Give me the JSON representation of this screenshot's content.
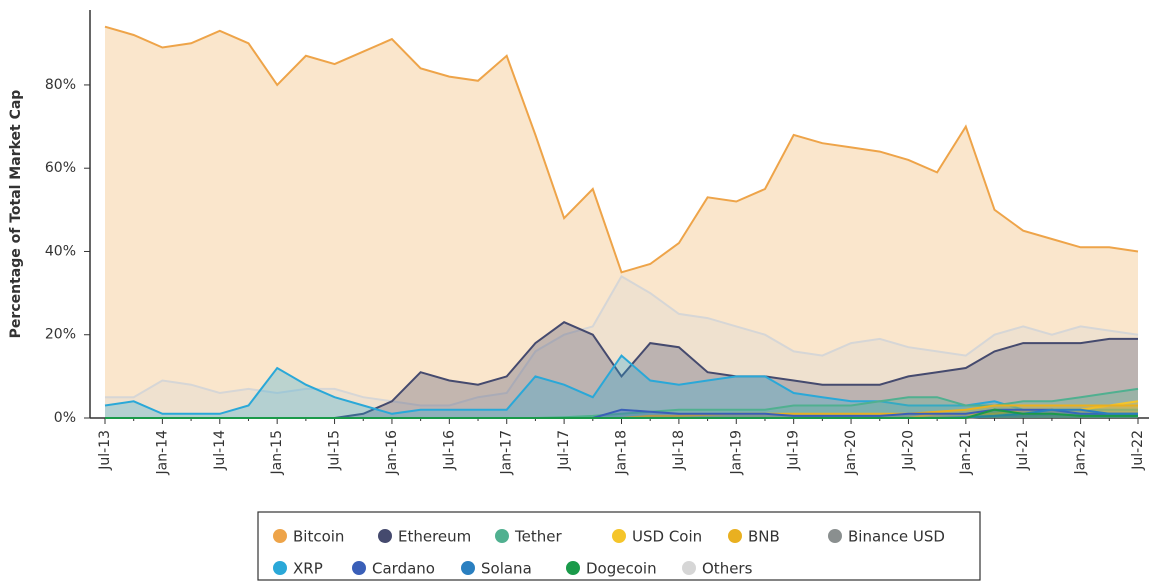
{
  "chart_data": {
    "type": "area",
    "y_label": "Percentage of Total Market Cap",
    "categories": [
      "Jul-13",
      null,
      "Jan-14",
      null,
      "Jul-14",
      null,
      "Jan-15",
      null,
      "Jul-15",
      null,
      "Jan-16",
      null,
      "Jul-16",
      null,
      "Jan-17",
      null,
      "Jul-17",
      null,
      "Jan-18",
      null,
      "Jul-18",
      null,
      "Jan-19",
      null,
      "Jul-19",
      null,
      "Jan-20",
      null,
      "Jul-20",
      null,
      "Jan-21",
      null,
      "Jul-21",
      null,
      "Jan-22",
      null,
      "Jul-22"
    ],
    "ylim": [
      0,
      98
    ],
    "yticks": [
      {
        "value": 0,
        "label": "0%"
      },
      {
        "value": 20,
        "label": "20%"
      },
      {
        "value": 40,
        "label": "40%"
      },
      {
        "value": 60,
        "label": "60%"
      },
      {
        "value": 80,
        "label": "80%"
      }
    ],
    "series": [
      {
        "name": "Bitcoin",
        "color": "#eea449",
        "values": [
          94,
          92,
          89,
          90,
          93,
          90,
          80,
          87,
          85,
          88,
          91,
          84,
          82,
          81,
          87,
          68,
          48,
          55,
          35,
          37,
          42,
          53,
          52,
          55,
          68,
          66,
          65,
          64,
          62,
          59,
          70,
          50,
          45,
          43,
          41,
          41,
          40
        ]
      },
      {
        "name": "Ethereum",
        "color": "#454a6e",
        "values": [
          0,
          0,
          0,
          0,
          0,
          0,
          0,
          0,
          0,
          1,
          4,
          11,
          9,
          8,
          10,
          18,
          23,
          20,
          10,
          18,
          17,
          11,
          10,
          10,
          9,
          8,
          8,
          8,
          10,
          11,
          12,
          16,
          18,
          18,
          18,
          19,
          19
        ]
      },
      {
        "name": "Tether",
        "color": "#50b090",
        "values": [
          0,
          0,
          0,
          0,
          0,
          0,
          0,
          0,
          0,
          0,
          0,
          0,
          0,
          0,
          0,
          0,
          0.2,
          0.5,
          1,
          1.5,
          2,
          2,
          2,
          2,
          3,
          3,
          3,
          4,
          5,
          5,
          3,
          3,
          4,
          4,
          5,
          6,
          7
        ]
      },
      {
        "name": "USD Coin",
        "color": "#f5c52a",
        "values": [
          0,
          0,
          0,
          0,
          0,
          0,
          0,
          0,
          0,
          0,
          0,
          0,
          0,
          0,
          0,
          0,
          0,
          0,
          0,
          0,
          0,
          0,
          0,
          0,
          0,
          0,
          0,
          0,
          0,
          1,
          1,
          1,
          2,
          2,
          2,
          3,
          4
        ]
      },
      {
        "name": "BNB",
        "color": "#e9b020",
        "values": [
          0,
          0,
          0,
          0,
          0,
          0,
          0,
          0,
          0,
          0,
          0,
          0,
          0,
          0,
          0,
          0,
          0,
          0,
          0,
          0.5,
          0.5,
          0.8,
          1,
          1,
          1,
          1,
          1,
          1,
          1,
          1.5,
          2,
          3,
          3,
          3,
          3,
          3,
          3
        ]
      },
      {
        "name": "Binance USD",
        "color": "#8a8f8f",
        "values": [
          0,
          0,
          0,
          0,
          0,
          0,
          0,
          0,
          0,
          0,
          0,
          0,
          0,
          0,
          0,
          0,
          0,
          0,
          0,
          0,
          0,
          0,
          0,
          0,
          0,
          0,
          0,
          0,
          0,
          0,
          0,
          0.5,
          0.5,
          0.8,
          0.8,
          1,
          1
        ]
      },
      {
        "name": "XRP",
        "color": "#2aa8d8",
        "values": [
          3,
          4,
          1,
          1,
          1,
          3,
          12,
          8,
          5,
          3,
          1,
          2,
          2,
          2,
          2,
          10,
          8,
          5,
          15,
          9,
          8,
          9,
          10,
          10,
          6,
          5,
          4,
          4,
          3,
          3,
          3,
          4,
          2,
          2,
          2,
          2,
          2
        ]
      },
      {
        "name": "Cardano",
        "color": "#3a5fb8",
        "values": [
          0,
          0,
          0,
          0,
          0,
          0,
          0,
          0,
          0,
          0,
          0,
          0,
          0,
          0,
          0,
          0,
          0,
          0,
          2,
          1.5,
          1,
          1,
          1,
          1,
          0.5,
          0.5,
          0.5,
          0.5,
          1,
          1,
          1,
          2,
          2,
          2,
          1,
          1,
          1
        ]
      },
      {
        "name": "Solana",
        "color": "#2a7fc0",
        "values": [
          0,
          0,
          0,
          0,
          0,
          0,
          0,
          0,
          0,
          0,
          0,
          0,
          0,
          0,
          0,
          0,
          0,
          0,
          0,
          0,
          0,
          0,
          0,
          0,
          0,
          0,
          0,
          0,
          0,
          0,
          0.2,
          0.5,
          1,
          2,
          2,
          1,
          1
        ]
      },
      {
        "name": "Dogecoin",
        "color": "#1a9a4a",
        "values": [
          0,
          0,
          0,
          0,
          0,
          0,
          0,
          0,
          0,
          0,
          0,
          0,
          0,
          0,
          0,
          0,
          0,
          0,
          0,
          0,
          0,
          0,
          0,
          0,
          0,
          0,
          0,
          0,
          0,
          0,
          0,
          2,
          1,
          1,
          0.5,
          0.5,
          0.5
        ]
      },
      {
        "name": "Others",
        "color": "#d6d6d6",
        "values": [
          5,
          5,
          9,
          8,
          6,
          7,
          6,
          7,
          7,
          5,
          4,
          3,
          3,
          5,
          6,
          16,
          20,
          22,
          34,
          30,
          25,
          24,
          22,
          20,
          16,
          15,
          18,
          19,
          17,
          16,
          15,
          20,
          22,
          20,
          22,
          21,
          20
        ]
      }
    ]
  }
}
